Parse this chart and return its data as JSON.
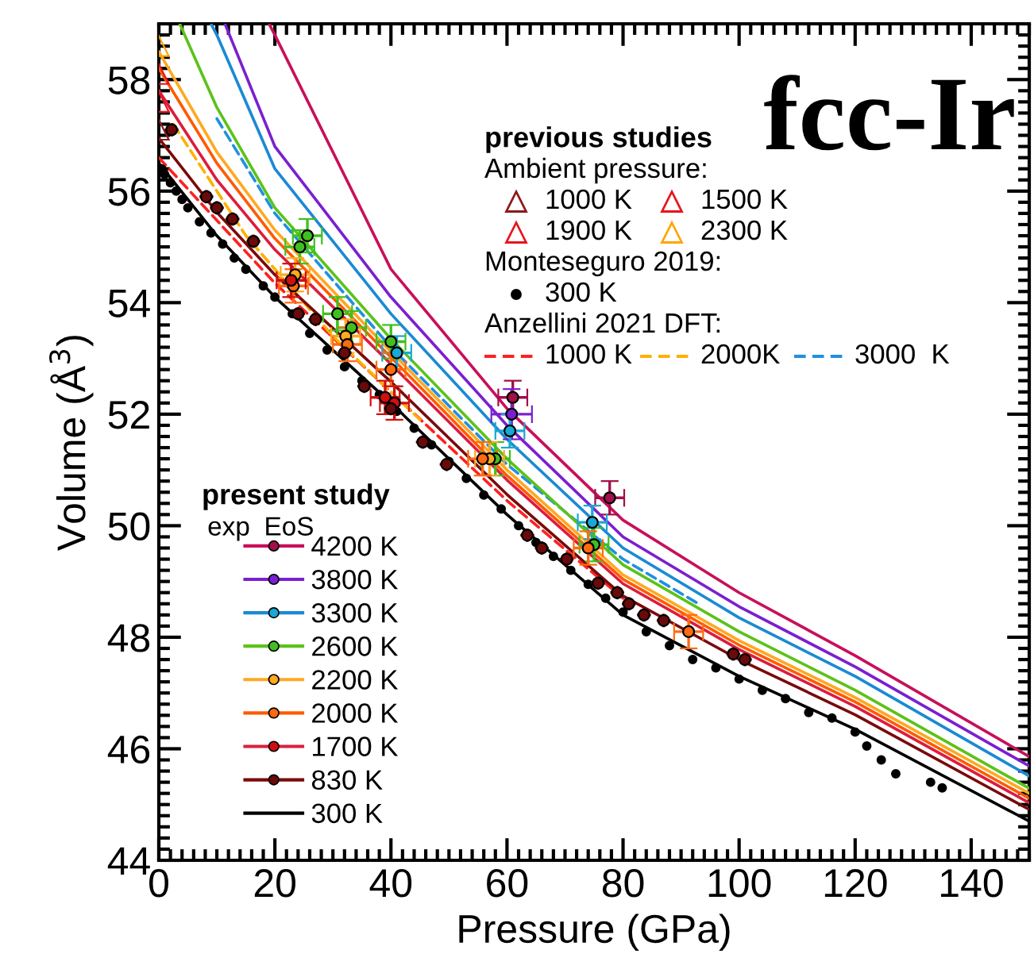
{
  "chart_data": {
    "type": "scatter",
    "title": "fcc-Ir",
    "xlabel": "Pressure (GPa)",
    "ylabel": "Volume (Å$^{3}$)",
    "xlim": [
      0,
      150
    ],
    "ylim": [
      44,
      59
    ],
    "xticks": [
      0,
      20,
      40,
      60,
      80,
      100,
      120,
      140
    ],
    "yticks": [
      44,
      46,
      48,
      50,
      52,
      54,
      56,
      58
    ],
    "legend": "bottom left",
    "annotations": [
      "previous studies",
      "Ambient pressure:",
      "Monteseguro 2019:",
      "Anzellini 2021 DFT:",
      "present study",
      "exp",
      "EoS"
    ],
    "series": [
      {
        "name": "1000 K",
        "marker": "triangle",
        "color": "#8b1a1a",
        "x": [
          0
        ],
        "values": [
          57.1
        ]
      },
      {
        "name": "1500 K",
        "marker": "triangle",
        "color": "#e8141c",
        "x": [
          0
        ],
        "values": [
          57.6
        ]
      },
      {
        "name": "1900 K",
        "marker": "triangle",
        "color": "#e8141c",
        "x": [
          0
        ],
        "values": [
          58.1
        ]
      },
      {
        "name": "2300 K",
        "marker": "triangle",
        "color": "#ffa500",
        "x": [
          0
        ],
        "values": [
          58.6
        ]
      },
      {
        "name": "300 K",
        "marker": "circle",
        "color": "#000000",
        "x": [
          0.5,
          1,
          2,
          3,
          4,
          5,
          7,
          9,
          11,
          13,
          15,
          18,
          20,
          23,
          26,
          29,
          32,
          35,
          38,
          41,
          44,
          47,
          50,
          53,
          56,
          59,
          62,
          65,
          68,
          71,
          74,
          77,
          80,
          84,
          88,
          92,
          96,
          100,
          104,
          108,
          112,
          116,
          120,
          122,
          124.5,
          127,
          133,
          135
        ],
        "values": [
          56.4,
          56.3,
          56.15,
          56.0,
          55.85,
          55.7,
          55.45,
          55.25,
          55.05,
          54.8,
          54.6,
          54.3,
          54.1,
          53.8,
          53.45,
          53.15,
          52.85,
          52.6,
          52.35,
          52.05,
          51.75,
          51.45,
          51.15,
          50.85,
          50.55,
          50.3,
          50.0,
          49.7,
          49.45,
          49.2,
          48.95,
          48.7,
          48.45,
          48.1,
          47.85,
          47.6,
          47.45,
          47.25,
          47.05,
          46.9,
          46.65,
          46.55,
          46.3,
          46.05,
          45.8,
          45.55,
          45.4,
          45.3
        ]
      },
      {
        "name": "1000 K",
        "type": "line",
        "line_style": "dashed",
        "color": "#ff2020",
        "x": [
          0,
          20,
          40,
          60,
          80
        ],
        "values": [
          56.6,
          54.35,
          52.4,
          50.45,
          48.7
        ]
      },
      {
        "name": "2000K",
        "type": "line",
        "line_style": "dashed",
        "color": "#ffb000",
        "x": [
          2.5,
          15,
          30,
          45
        ],
        "values": [
          57.2,
          55.2,
          53.4,
          51.9
        ]
      },
      {
        "name": "3000  K",
        "type": "line",
        "line_style": "dashed",
        "color": "#2090e0",
        "x": [
          10,
          20,
          40,
          60,
          80,
          93
        ],
        "values": [
          57.3,
          55.6,
          53.2,
          51.1,
          49.4,
          48.6
        ]
      },
      {
        "name": "4200 K",
        "type": "line",
        "line_style": "solid",
        "color": "#c8105a",
        "x": [
          19,
          20,
          40,
          60,
          80,
          100,
          120,
          150
        ],
        "values": [
          59,
          58.8,
          54.6,
          52.1,
          50.1,
          48.8,
          47.67,
          45.86
        ]
      },
      {
        "name": "3800 K",
        "type": "line",
        "line_style": "solid",
        "color": "#7b1fd0",
        "x": [
          11.4,
          20,
          40,
          60,
          80,
          100,
          120,
          150
        ],
        "values": [
          59,
          56.8,
          54.1,
          51.8,
          49.8,
          48.55,
          47.47,
          45.69
        ]
      },
      {
        "name": "3300 K",
        "type": "line",
        "line_style": "solid",
        "color": "#1a8ad4",
        "x": [
          9,
          10,
          20,
          40,
          60,
          80,
          100,
          120,
          150
        ],
        "values": [
          59,
          58.8,
          56.4,
          53.8,
          51.55,
          49.6,
          48.35,
          47.3,
          45.51
        ]
      },
      {
        "name": "2600 K",
        "type": "line",
        "line_style": "solid",
        "color": "#5cc21a",
        "x": [
          3.6,
          10,
          20,
          40,
          60,
          80,
          100,
          120,
          150
        ],
        "values": [
          59,
          57.5,
          55.7,
          53.35,
          51.2,
          49.3,
          48.1,
          47.05,
          45.29
        ]
      },
      {
        "name": "2200 K",
        "type": "line",
        "line_style": "solid",
        "color": "#ffa820",
        "x": [
          0,
          10,
          20,
          40,
          60,
          80,
          100,
          120,
          150
        ],
        "values": [
          58.5,
          56.7,
          55.3,
          53.12,
          51.0,
          49.12,
          47.94,
          46.92,
          45.2
        ]
      },
      {
        "name": "2000 K",
        "type": "line",
        "line_style": "solid",
        "color": "#ff5a00",
        "x": [
          0,
          10,
          20,
          40,
          60,
          80,
          100,
          120,
          150
        ],
        "values": [
          58.2,
          56.5,
          55.15,
          53.02,
          50.9,
          49.04,
          47.86,
          46.84,
          45.11
        ]
      },
      {
        "name": "1700 K",
        "type": "line",
        "line_style": "solid",
        "color": "#dd1c3c",
        "x": [
          0,
          10,
          20,
          40,
          60,
          80,
          100,
          120,
          150
        ],
        "values": [
          57.8,
          56.2,
          54.95,
          52.9,
          50.82,
          48.96,
          47.78,
          46.76,
          45.03
        ]
      },
      {
        "name": "830 K",
        "type": "line",
        "line_style": "solid",
        "color": "#7a0a0a",
        "x": [
          0,
          10,
          20,
          40,
          60,
          80,
          100,
          120,
          150
        ],
        "values": [
          56.95,
          55.62,
          54.5,
          52.58,
          50.56,
          48.74,
          47.6,
          46.61,
          44.91
        ]
      },
      {
        "name": "300 K",
        "type": "line",
        "line_style": "solid",
        "color": "#000000",
        "x": [
          0,
          10,
          20,
          40,
          60,
          80,
          100,
          120,
          150
        ],
        "values": [
          56.5,
          55.2,
          54.1,
          52.2,
          50.2,
          48.4,
          47.3,
          46.35,
          44.7
        ]
      },
      {
        "marker": "circle",
        "color": "#a0104a",
        "x": [
          61,
          77.7
        ],
        "values": [
          52.3,
          50.5
        ],
        "errors": [
          0.3,
          0.3
        ],
        "xerrors": [
          2.5,
          2.5
        ]
      },
      {
        "marker": "circle",
        "color": "#7b1fd0",
        "x": [
          60.8
        ],
        "values": [
          52.0
        ],
        "errors": [
          0.45
        ],
        "xerrors": [
          3.5
        ]
      },
      {
        "marker": "circle",
        "color": "#1aa8d4",
        "x": [
          41,
          60.5,
          74.7
        ],
        "values": [
          53.1,
          51.7,
          50.06
        ],
        "errors": [
          0.3,
          0.3,
          0.3
        ],
        "xerrors": [
          2.5,
          2.5,
          2.5
        ]
      },
      {
        "marker": "circle",
        "color": "#40c020",
        "x": [
          24.3,
          25.6,
          30.8,
          33.2,
          40,
          58,
          75
        ],
        "values": [
          55.0,
          55.2,
          53.8,
          53.55,
          53.3,
          51.2,
          49.66
        ],
        "errors": [
          0.3,
          0.3,
          0.3,
          0.3,
          0.3,
          0.3,
          0.3
        ],
        "xerrors": [
          2.5,
          2.5,
          2.5,
          2.5,
          2.5,
          2.5,
          2.5
        ]
      },
      {
        "marker": "circle",
        "color": "#ffa820",
        "x": [
          23.5,
          32.2,
          57
        ],
        "values": [
          54.5,
          53.4,
          51.2
        ],
        "errors": [
          0.3,
          0.3,
          0.3
        ],
        "xerrors": [
          2.5,
          2.5,
          2.5
        ]
      },
      {
        "marker": "circle",
        "color": "#ff6a10",
        "x": [
          23.2,
          32.5,
          40,
          55.8,
          74,
          91.3
        ],
        "values": [
          54.3,
          53.25,
          52.8,
          51.2,
          49.6,
          48.1
        ],
        "errors": [
          0.3,
          0.3,
          0.3,
          0.3,
          0.3,
          0.3
        ],
        "xerrors": [
          2.5,
          2.5,
          2.5,
          2.5,
          2.5,
          2.5
        ]
      },
      {
        "marker": "circle",
        "color": "#d01010",
        "x": [
          22.8,
          39,
          40.6
        ],
        "values": [
          54.4,
          52.3,
          52.2
        ],
        "errors": [
          0.3,
          0.3,
          0.3
        ],
        "xerrors": [
          2.5,
          2.5,
          2.5
        ]
      },
      {
        "marker": "circle",
        "color": "#6a0a0a",
        "x": [
          2.2,
          8.2,
          10,
          12.7,
          16.3,
          24,
          27,
          32,
          35.4,
          40,
          45.5,
          49.6,
          63.5,
          66,
          70.3,
          75.7,
          79,
          81,
          83.6,
          87,
          99,
          101
        ],
        "values": [
          57.1,
          55.9,
          55.7,
          55.5,
          55.1,
          53.8,
          53.7,
          53.1,
          52.5,
          52.1,
          51.5,
          51.1,
          49.83,
          49.6,
          49.4,
          48.97,
          48.8,
          48.6,
          48.4,
          48.3,
          47.7,
          47.6
        ],
        "errors": [
          0.12,
          0.12,
          0.12,
          0.12,
          0.12,
          0.12,
          0.12,
          0.12,
          0.12,
          0.12,
          0.12,
          0.12,
          0.12,
          0.12,
          0.12,
          0.12,
          0.12,
          0.12,
          0.12,
          0.12,
          0.12,
          0.12
        ],
        "xerrors": [
          1.2,
          1.2,
          1.2,
          1.2,
          1.2,
          1.2,
          1.2,
          1.2,
          1.2,
          1.2,
          1.2,
          1.2,
          1.2,
          1.2,
          1.2,
          1.2,
          1.2,
          1.2,
          1.2,
          1.2,
          1.2,
          1.2
        ]
      }
    ]
  }
}
